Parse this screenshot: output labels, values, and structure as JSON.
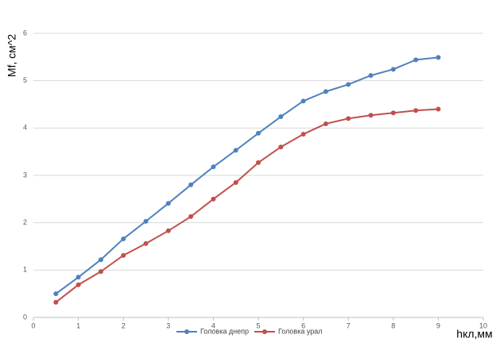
{
  "chart_data": {
    "type": "line",
    "y_label": "Mf, см^2",
    "x_label": "hкл,мм",
    "x": [
      0.5,
      1,
      1.5,
      2,
      2.5,
      3,
      3.5,
      4,
      4.5,
      5,
      5.5,
      6,
      6.5,
      7,
      7.5,
      8,
      8.5,
      9
    ],
    "series": [
      {
        "name": "Головка днепр",
        "color": "#4f81bd",
        "values": [
          0.5,
          0.85,
          1.22,
          1.66,
          2.03,
          2.41,
          2.8,
          3.18,
          3.53,
          3.89,
          4.24,
          4.57,
          4.77,
          4.92,
          5.11,
          5.24,
          5.44,
          5.49
        ]
      },
      {
        "name": "Головка урал",
        "color": "#c0504d",
        "values": [
          0.32,
          0.69,
          0.97,
          1.31,
          1.56,
          1.83,
          2.13,
          2.5,
          2.85,
          3.27,
          3.6,
          3.87,
          4.09,
          4.2,
          4.27,
          4.32,
          4.37,
          4.4
        ]
      }
    ],
    "xlim": [
      0,
      10
    ],
    "xticks": [
      0,
      1,
      2,
      3,
      4,
      5,
      6,
      7,
      8,
      9,
      10
    ],
    "ylim": [
      0,
      6
    ],
    "yticks": [
      0,
      1,
      2,
      3,
      4,
      5,
      6
    ],
    "grid": true,
    "legend": "bottom"
  }
}
